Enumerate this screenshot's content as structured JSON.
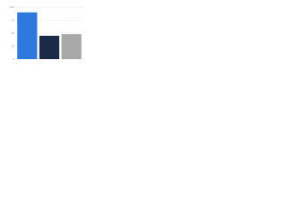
{
  "chart_data": {
    "type": "bar",
    "categories": [
      null,
      null,
      null
    ],
    "values": [
      90,
      45,
      48
    ],
    "colors": [
      "#2f78de",
      "#1b2a47",
      "#a8a8a8"
    ],
    "ylim": [
      0,
      100
    ],
    "yticks": [
      0,
      25,
      50,
      75,
      100
    ],
    "grid": true
  }
}
